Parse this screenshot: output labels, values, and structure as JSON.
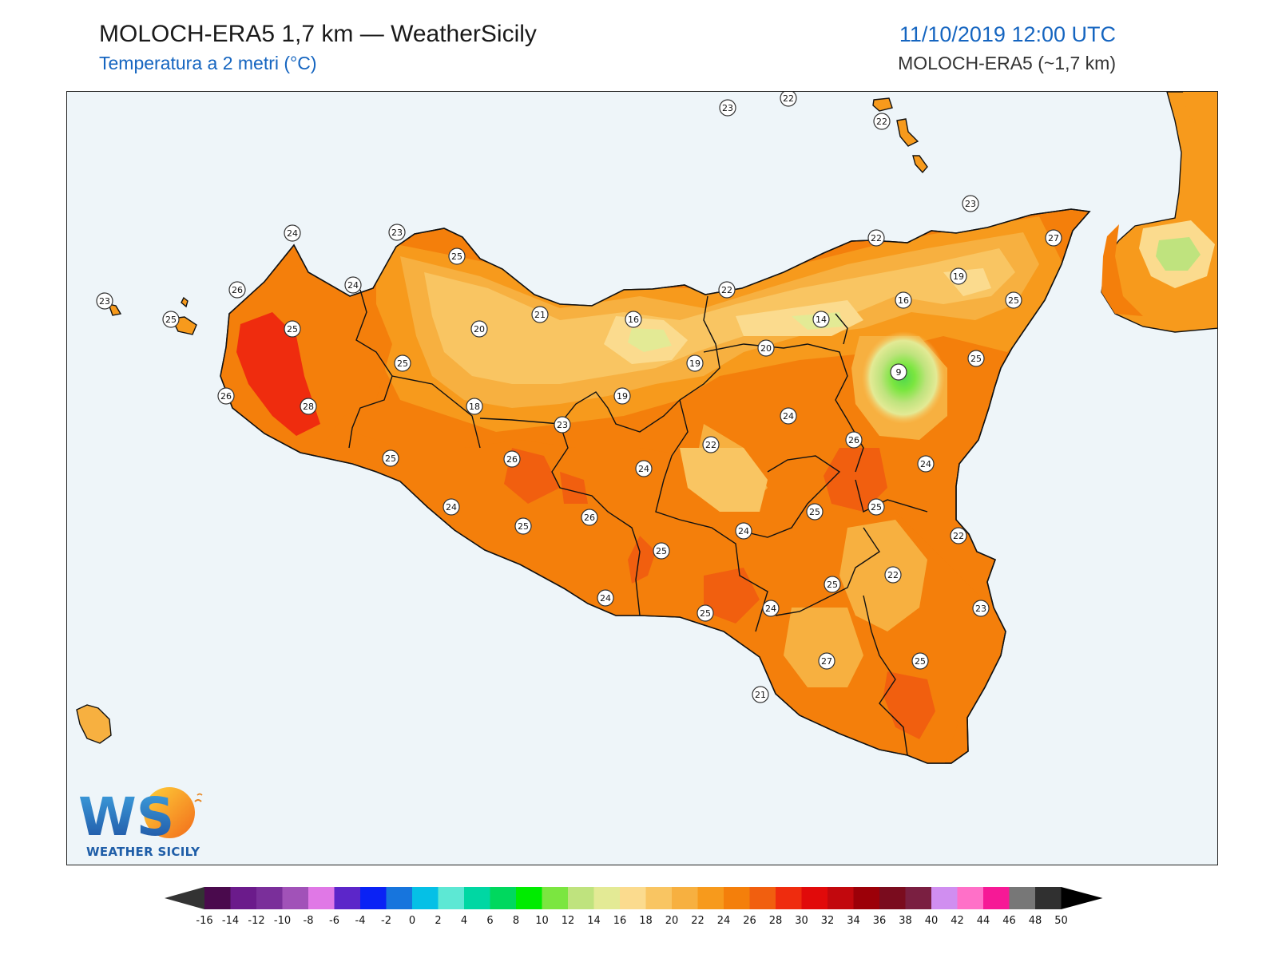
{
  "header": {
    "title": "MOLOCH-ERA5 1,7 km — WeatherSicily",
    "subtitle": "Temperatura a 2 metri (°C)",
    "datetime": "11/10/2019 12:00 UTC",
    "model": "MOLOCH-ERA5 (~1,7 km)"
  },
  "colors": {
    "accent_blue": "#1565c0",
    "sea": "#eef5f9",
    "coast": "#111111",
    "t_14": "#bfe37e",
    "t_16": "#e3ea95",
    "t_18": "#fbdb8e",
    "t_20": "#f9c562",
    "t_22": "#f7b040",
    "t_24": "#f79a1c",
    "t_26": "#f47f0b",
    "t_28": "#f15f0f",
    "t_30": "#ef2c0e",
    "t_cold": "#51d84c"
  },
  "stations": [
    {
      "value": "23"
    },
    {
      "value": "22"
    },
    {
      "value": "22"
    },
    {
      "value": "23"
    },
    {
      "value": "24"
    },
    {
      "value": "23"
    },
    {
      "value": "25"
    },
    {
      "value": "22"
    },
    {
      "value": "27"
    },
    {
      "value": "26"
    },
    {
      "value": "24"
    },
    {
      "value": "19"
    },
    {
      "value": "23"
    },
    {
      "value": "25"
    },
    {
      "value": "25"
    },
    {
      "value": "20"
    },
    {
      "value": "21"
    },
    {
      "value": "16"
    },
    {
      "value": "22"
    },
    {
      "value": "16"
    },
    {
      "value": "14"
    },
    {
      "value": "25"
    },
    {
      "value": "20"
    },
    {
      "value": "25"
    },
    {
      "value": "19"
    },
    {
      "value": "9"
    },
    {
      "value": "25"
    },
    {
      "value": "26"
    },
    {
      "value": "28"
    },
    {
      "value": "18"
    },
    {
      "value": "19"
    },
    {
      "value": "23"
    },
    {
      "value": "24"
    },
    {
      "value": "22"
    },
    {
      "value": "26"
    },
    {
      "value": "25"
    },
    {
      "value": "26"
    },
    {
      "value": "24"
    },
    {
      "value": "24"
    },
    {
      "value": "25"
    },
    {
      "value": "26"
    },
    {
      "value": "25"
    },
    {
      "value": "25"
    },
    {
      "value": "24"
    },
    {
      "value": "24"
    },
    {
      "value": "22"
    },
    {
      "value": "22"
    },
    {
      "value": "25"
    },
    {
      "value": "25"
    },
    {
      "value": "24"
    },
    {
      "value": "24"
    },
    {
      "value": "23"
    },
    {
      "value": "25"
    },
    {
      "value": "27"
    },
    {
      "value": "25"
    },
    {
      "value": "21"
    }
  ],
  "legend": {
    "ticks": [
      "-16",
      "-14",
      "-12",
      "-10",
      "-8",
      "-6",
      "-4",
      "-2",
      "0",
      "2",
      "4",
      "6",
      "8",
      "10",
      "12",
      "14",
      "16",
      "18",
      "20",
      "22",
      "24",
      "26",
      "28",
      "30",
      "32",
      "34",
      "36",
      "38",
      "40",
      "42",
      "44",
      "46",
      "48",
      "50"
    ],
    "colors": [
      "#4a0a4d",
      "#6b1b8b",
      "#7a2f9a",
      "#a152b8",
      "#e078e6",
      "#5c26c9",
      "#0a22f5",
      "#1775dd",
      "#05c0e6",
      "#5de8d4",
      "#00d7a3",
      "#00d85e",
      "#00ec00",
      "#7be640",
      "#bfe37e",
      "#e3ea95",
      "#fbdb8e",
      "#f9c562",
      "#f7b040",
      "#f79a1c",
      "#f47f0b",
      "#f15f0f",
      "#ef2c0e",
      "#e10a0a",
      "#c2080d",
      "#9c0008",
      "#7a0c1e",
      "#7a1f41",
      "#d08ef0",
      "#ff70c8",
      "#f61996",
      "#777777",
      "#303030"
    ],
    "low_arrow_color": "#333333",
    "high_arrow_color": "#000000"
  },
  "logo": {
    "letters": "WS",
    "caption": "WEATHER SICILY"
  }
}
